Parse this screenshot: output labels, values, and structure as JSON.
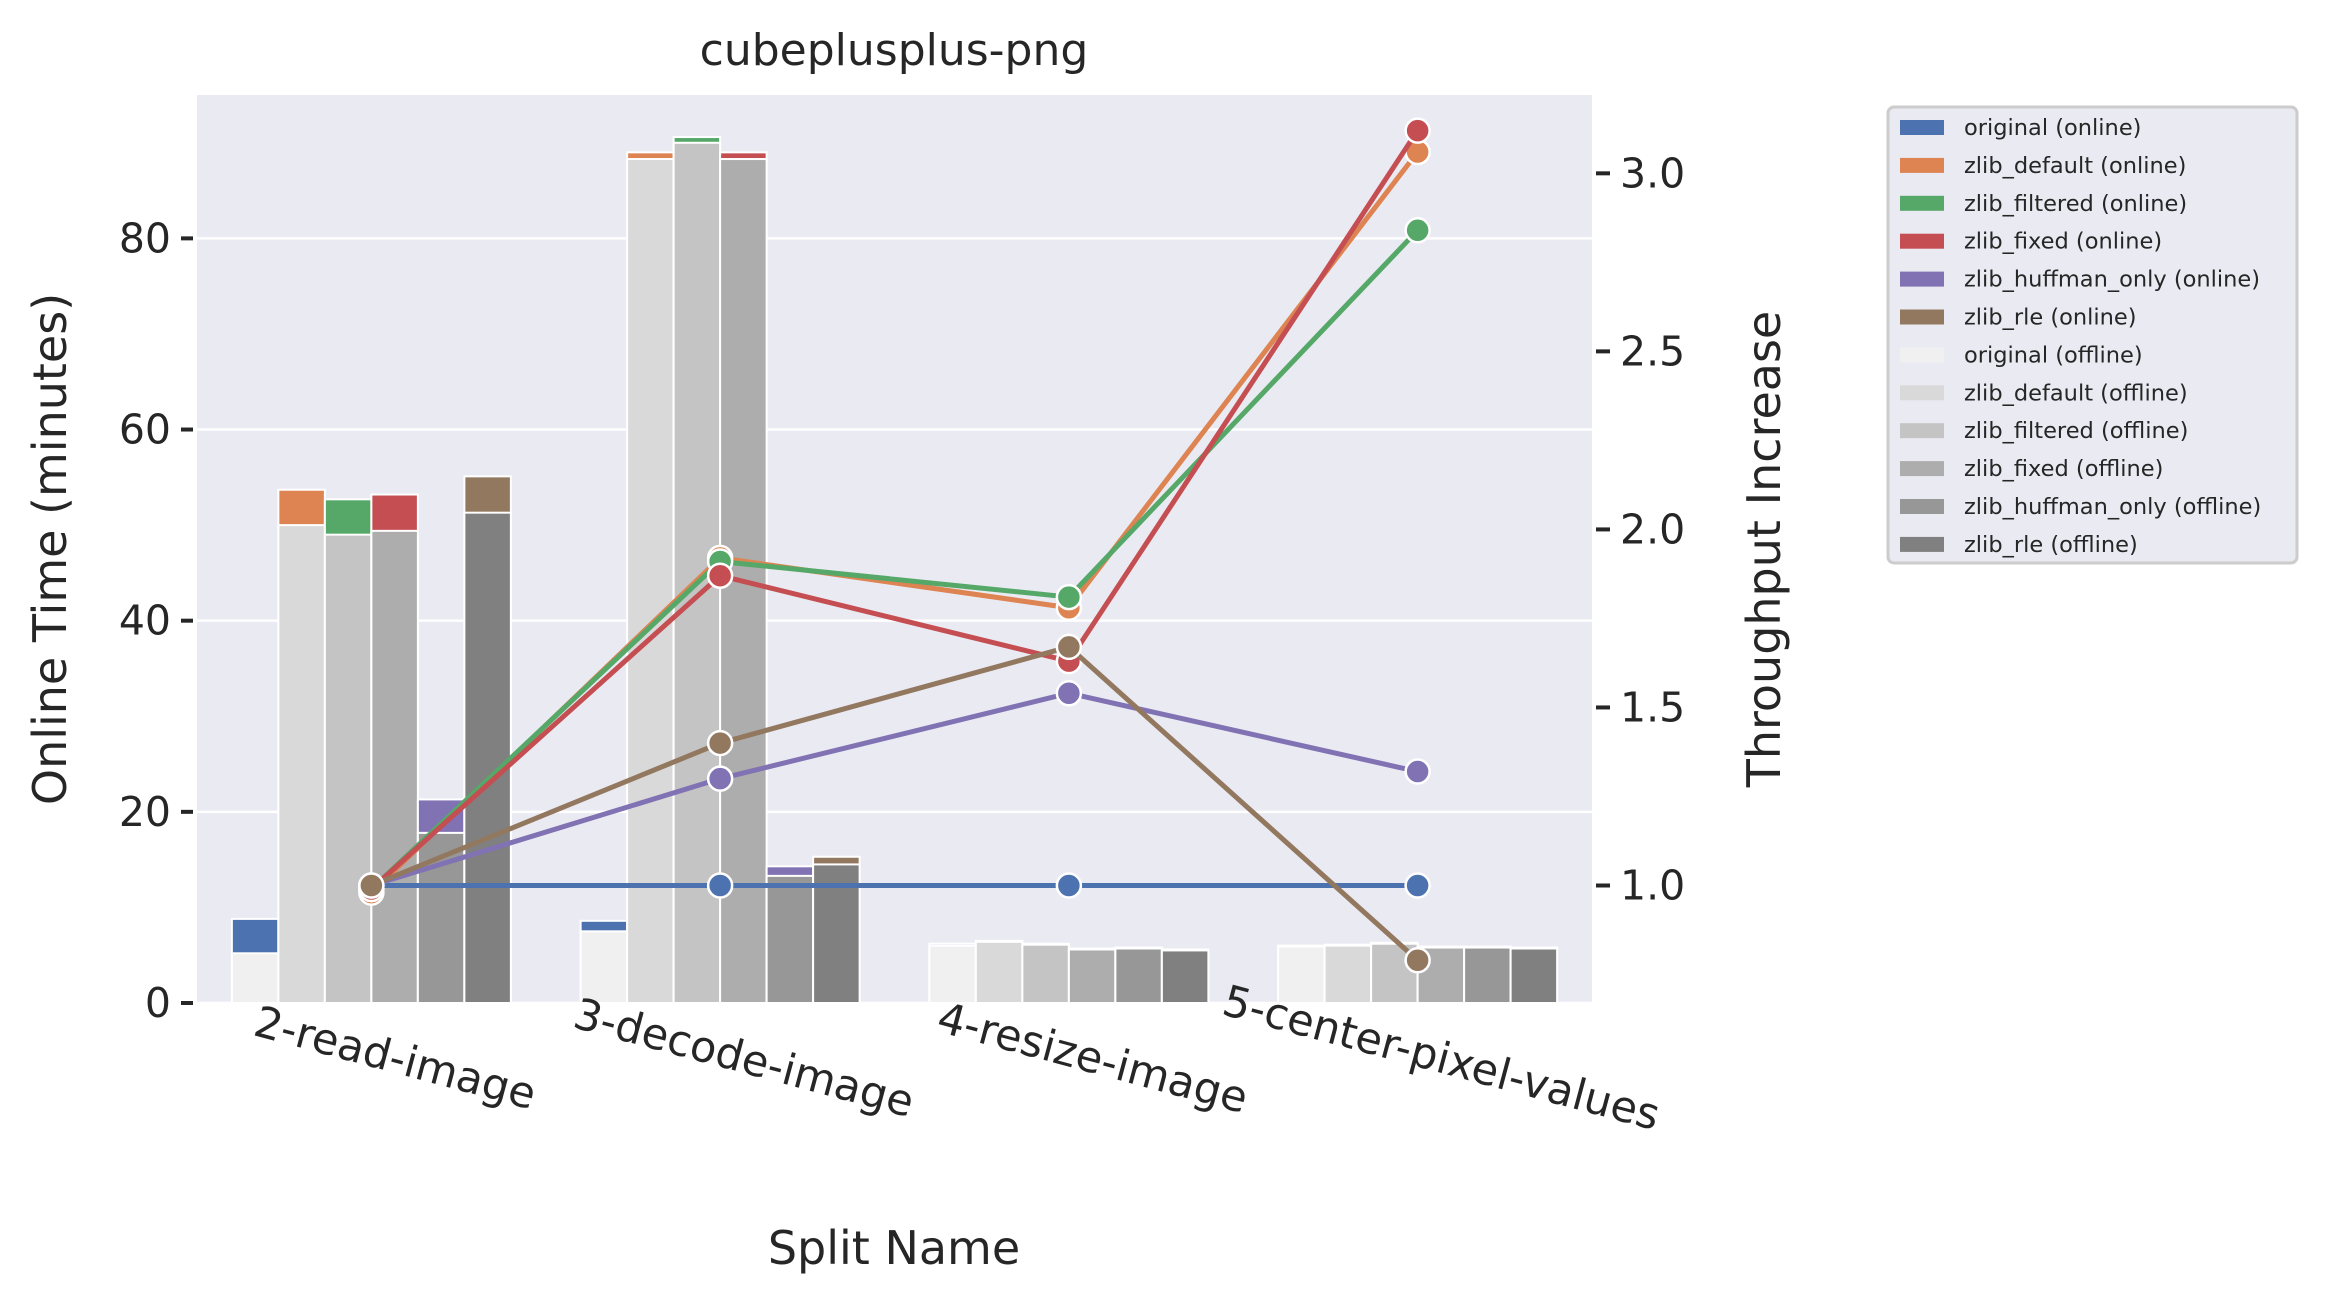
{
  "chart_data": {
    "type": "bar",
    "title": "cubeplusplus-png",
    "xlabel": "Split Name",
    "ylabel": "Online Time (minutes)",
    "y2label": "Throughput Increase",
    "ylim": [
      0,
      95
    ],
    "y2lim": [
      0.67,
      3.22
    ],
    "yticks": [
      0,
      20,
      40,
      60,
      80
    ],
    "y2ticks": [
      1.0,
      1.5,
      2.0,
      2.5,
      3.0
    ],
    "y2tick_labels": [
      "1.0",
      "1.5",
      "2.0",
      "2.5",
      "3.0"
    ],
    "grid": true,
    "legend_position": "outside-right",
    "categories": [
      "2-read-image",
      "3-decode-image",
      "4-resize-image",
      "5-center-pixel-values"
    ],
    "bars_note": "stacked: offline bar in front, online bar top = total",
    "online_series": [
      {
        "name": "original (online)",
        "color": "#4c72b0",
        "values": [
          8.8,
          8.6,
          6.2,
          6.0
        ]
      },
      {
        "name": "zlib_default (online)",
        "color": "#dd8452",
        "values": [
          53.7,
          89.0,
          6.5,
          6.1
        ]
      },
      {
        "name": "zlib_filtered (online)",
        "color": "#55a868",
        "values": [
          52.7,
          90.6,
          6.2,
          6.3
        ]
      },
      {
        "name": "zlib_fixed (online)",
        "color": "#c44e52",
        "values": [
          53.2,
          89.0,
          5.7,
          5.9
        ]
      },
      {
        "name": "zlib_huffman_only (online)",
        "color": "#8172b3",
        "values": [
          21.3,
          14.3,
          5.8,
          5.9
        ]
      },
      {
        "name": "zlib_rle (online)",
        "color": "#937860",
        "values": [
          55.1,
          15.3,
          5.6,
          5.8
        ]
      }
    ],
    "offline_series": [
      {
        "name": "original (offline)",
        "color": "#f0f0f0",
        "values": [
          5.2,
          7.5,
          6.0,
          5.9
        ]
      },
      {
        "name": "zlib_default (offline)",
        "color": "#d9d9d9",
        "values": [
          50.0,
          88.3,
          6.4,
          6.0
        ]
      },
      {
        "name": "zlib_filtered (offline)",
        "color": "#c4c4c4",
        "values": [
          49.0,
          90.0,
          6.1,
          6.2
        ]
      },
      {
        "name": "zlib_fixed (offline)",
        "color": "#adadad",
        "values": [
          49.4,
          88.3,
          5.6,
          5.8
        ]
      },
      {
        "name": "zlib_huffman_only (offline)",
        "color": "#979797",
        "values": [
          17.8,
          13.3,
          5.7,
          5.8
        ]
      },
      {
        "name": "zlib_rle (offline)",
        "color": "#808080",
        "values": [
          51.3,
          14.5,
          5.5,
          5.7
        ]
      }
    ],
    "line_series": [
      {
        "name": "original",
        "color": "#4c72b0",
        "values": [
          1.0,
          1.0,
          1.0,
          1.0
        ]
      },
      {
        "name": "zlib_default",
        "color": "#dd8452",
        "values": [
          0.98,
          1.92,
          1.78,
          3.06
        ]
      },
      {
        "name": "zlib_filtered",
        "color": "#55a868",
        "values": [
          0.99,
          1.91,
          1.81,
          2.84
        ]
      },
      {
        "name": "zlib_fixed",
        "color": "#c44e52",
        "values": [
          0.99,
          1.87,
          1.63,
          3.12
        ]
      },
      {
        "name": "zlib_huffman_only",
        "color": "#8172b3",
        "values": [
          1.0,
          1.3,
          1.54,
          1.32
        ]
      },
      {
        "name": "zlib_rle",
        "color": "#937860",
        "values": [
          1.0,
          1.4,
          1.67,
          0.79
        ]
      }
    ],
    "legend_entries": [
      "original (online)",
      "zlib_default (online)",
      "zlib_filtered (online)",
      "zlib_fixed (online)",
      "zlib_huffman_only (online)",
      "zlib_rle (online)",
      "original (offline)",
      "zlib_default (offline)",
      "zlib_filtered (offline)",
      "zlib_fixed (offline)",
      "zlib_huffman_only (offline)",
      "zlib_rle (offline)"
    ]
  }
}
